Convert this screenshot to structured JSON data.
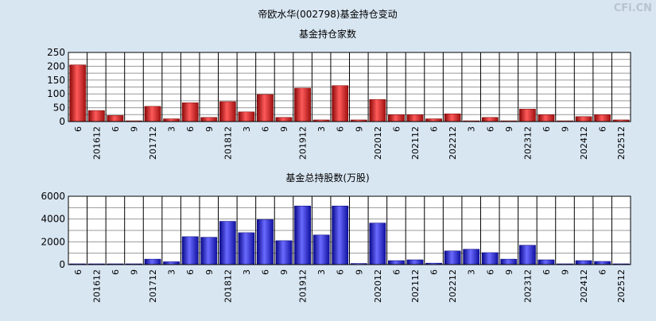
{
  "page": {
    "title": "帝欧水华(002798)基金持仓变动",
    "watermark": "CFi.CN"
  },
  "chart_data": [
    {
      "type": "bar",
      "title": "基金持仓家数",
      "xlabel": "",
      "ylabel": "",
      "ylim": [
        0,
        250
      ],
      "yticks": [
        0,
        50,
        100,
        150,
        200,
        250
      ],
      "grid": true,
      "legend": "none",
      "color": "#dd2222",
      "categories": [
        "6",
        "201612",
        "6",
        "9",
        "201712",
        "3",
        "6",
        "9",
        "201812",
        "3",
        "6",
        "9",
        "201912",
        "3",
        "6",
        "9",
        "202012",
        "6",
        "202112",
        "6",
        "202212",
        "3",
        "6",
        "9",
        "202312",
        "6",
        "9",
        "202412",
        "6",
        "202512"
      ],
      "values": [
        205,
        40,
        22,
        2,
        55,
        10,
        68,
        15,
        72,
        35,
        98,
        15,
        121,
        6,
        130,
        6,
        80,
        25,
        25,
        10,
        28,
        2,
        15,
        2,
        45,
        25,
        2,
        18,
        25,
        6
      ]
    },
    {
      "type": "bar",
      "title": "基金总持股数(万股)",
      "xlabel": "",
      "ylabel": "",
      "ylim": [
        0,
        6000
      ],
      "yticks": [
        0,
        2000,
        4000,
        6000
      ],
      "grid": true,
      "legend": "none",
      "color": "#2222dd",
      "categories": [
        "6",
        "201612",
        "6",
        "9",
        "201712",
        "3",
        "6",
        "9",
        "201812",
        "3",
        "6",
        "9",
        "201912",
        "3",
        "6",
        "9",
        "202012",
        "6",
        "202112",
        "6",
        "202212",
        "3",
        "6",
        "9",
        "202312",
        "6",
        "9",
        "202412",
        "6",
        "202512"
      ],
      "values": [
        30,
        20,
        30,
        20,
        480,
        250,
        2450,
        2400,
        3800,
        2800,
        3950,
        2100,
        5150,
        2600,
        5150,
        100,
        3650,
        350,
        420,
        130,
        1200,
        1350,
        1050,
        480,
        1700,
        420,
        30,
        350,
        280,
        30
      ]
    }
  ]
}
